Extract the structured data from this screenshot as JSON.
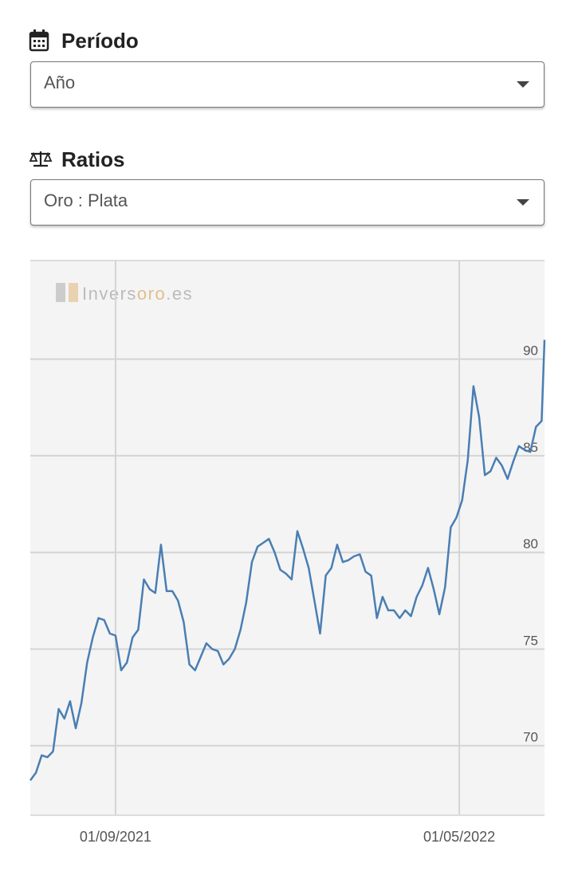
{
  "period": {
    "label": "Período",
    "value": "Año"
  },
  "ratios": {
    "label": "Ratios",
    "value": "Oro : Plata"
  },
  "chart_data": {
    "type": "line",
    "watermark": [
      "Invers",
      "oro",
      ".es"
    ],
    "x": [
      "03/07/2021",
      "07/07/2021",
      "11/07/2021",
      "15/07/2021",
      "19/07/2021",
      "23/07/2021",
      "27/07/2021",
      "31/07/2021",
      "04/08/2021",
      "08/08/2021",
      "12/08/2021",
      "16/08/2021",
      "20/08/2021",
      "24/08/2021",
      "28/08/2021",
      "01/09/2021",
      "05/09/2021",
      "09/09/2021",
      "13/09/2021",
      "17/09/2021",
      "21/09/2021",
      "25/09/2021",
      "29/09/2021",
      "03/10/2021",
      "07/10/2021",
      "11/10/2021",
      "15/10/2021",
      "19/10/2021",
      "23/10/2021",
      "27/10/2021",
      "31/10/2021",
      "04/11/2021",
      "08/11/2021",
      "12/11/2021",
      "16/11/2021",
      "20/11/2021",
      "24/11/2021",
      "28/11/2021",
      "02/12/2021",
      "06/12/2021",
      "10/12/2021",
      "14/12/2021",
      "18/12/2021",
      "22/12/2021",
      "26/12/2021",
      "30/12/2021",
      "03/01/2022",
      "07/01/2022",
      "11/01/2022",
      "15/01/2022",
      "19/01/2022",
      "23/01/2022",
      "27/01/2022",
      "31/01/2022",
      "04/02/2022",
      "08/02/2022",
      "12/02/2022",
      "16/02/2022",
      "20/02/2022",
      "24/02/2022",
      "28/02/2022",
      "04/03/2022",
      "08/03/2022",
      "12/03/2022",
      "16/03/2022",
      "20/03/2022",
      "24/03/2022",
      "28/03/2022",
      "01/04/2022",
      "05/04/2022",
      "09/04/2022",
      "13/04/2022",
      "17/04/2022",
      "21/04/2022",
      "25/04/2022",
      "29/04/2022",
      "03/05/2022",
      "07/05/2022",
      "11/05/2022",
      "15/05/2022",
      "19/05/2022",
      "23/05/2022",
      "27/05/2022",
      "31/05/2022",
      "04/06/2022",
      "08/06/2022",
      "12/06/2022",
      "16/06/2022",
      "20/06/2022",
      "24/06/2022",
      "28/06/2022",
      "30/06/2022"
    ],
    "series": [
      {
        "color": "#4a7eb3",
        "values": [
          68.2,
          68.6,
          69.5,
          69.4,
          69.7,
          71.9,
          71.4,
          72.3,
          70.9,
          72.2,
          74.3,
          75.6,
          76.6,
          76.5,
          75.8,
          75.7,
          73.9,
          74.3,
          75.6,
          76.0,
          78.6,
          78.1,
          77.9,
          80.4,
          78.0,
          78.0,
          77.5,
          76.4,
          74.2,
          73.9,
          74.6,
          75.3,
          75.0,
          74.9,
          74.2,
          74.5,
          75.0,
          76.0,
          77.4,
          79.5,
          80.3,
          80.5,
          80.7,
          80.0,
          79.1,
          78.9,
          78.6,
          81.1,
          80.2,
          79.2,
          77.5,
          75.8,
          78.8,
          79.2,
          80.4,
          79.5,
          79.6,
          79.8,
          79.9,
          79.0,
          78.8,
          76.6,
          77.7,
          77.0,
          77.0,
          76.6,
          77.0,
          76.7,
          77.7,
          78.3,
          79.2,
          78.1,
          76.8,
          78.2,
          81.3,
          81.8,
          82.7,
          84.8,
          88.6,
          87.0,
          84.0,
          84.2,
          84.9,
          84.5,
          83.8,
          84.7,
          85.5,
          85.3,
          85.2,
          86.5,
          86.8,
          91.0
        ]
      }
    ],
    "xlim": [
      "03/07/2021",
      "30/06/2022"
    ],
    "xticks": [
      "01/09/2021",
      "01/05/2022"
    ],
    "ylim": [
      66.4,
      95.1
    ],
    "yticks": [
      70,
      75,
      80,
      85,
      90
    ],
    "grid": true
  }
}
